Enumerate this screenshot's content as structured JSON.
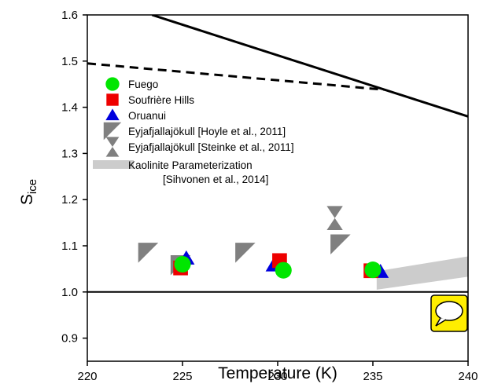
{
  "chart_data": {
    "type": "scatter",
    "xlabel": "Temperature (K)",
    "ylabel": "S",
    "ylabel_sub": "ice",
    "xlim": [
      220,
      240
    ],
    "ylim": [
      0.85,
      1.6
    ],
    "xticks": [
      "220",
      "225",
      "230",
      "235",
      "240"
    ],
    "yticks": [
      "0.9",
      "1.0",
      "1.1",
      "1.2",
      "1.3",
      "1.4",
      "1.5",
      "1.6"
    ],
    "legend_position": "left",
    "series": [
      {
        "name": "Fuego",
        "marker": "circle",
        "color": "#00e600",
        "points": [
          {
            "x": 225.0,
            "y": 1.06
          },
          {
            "x": 230.3,
            "y": 1.047
          },
          {
            "x": 235.0,
            "y": 1.048
          }
        ]
      },
      {
        "name": "Soufrière Hills",
        "marker": "square",
        "color": "#ee0000",
        "points": [
          {
            "x": 224.9,
            "y": 1.052
          },
          {
            "x": 230.1,
            "y": 1.068
          },
          {
            "x": 234.9,
            "y": 1.046
          }
        ]
      },
      {
        "name": "Oruanui",
        "marker": "triangle",
        "color": "#0000dd",
        "points": [
          {
            "x": 225.2,
            "y": 1.072
          },
          {
            "x": 229.8,
            "y": 1.057
          },
          {
            "x": 235.4,
            "y": 1.043
          }
        ]
      },
      {
        "name": "Eyjafjallajökull [Hoyle et al., 2011]",
        "marker": "wedge",
        "color": "#808080",
        "points": [
          {
            "x": 223.2,
            "y": 1.085
          },
          {
            "x": 224.9,
            "y": 1.058
          },
          {
            "x": 228.3,
            "y": 1.085
          },
          {
            "x": 233.3,
            "y": 1.103
          }
        ]
      },
      {
        "name": "Eyjafjallajökull [Steinke et al., 2011]",
        "marker": "hourglass",
        "color": "#808080",
        "points": [
          {
            "x": 233.0,
            "y": 1.16
          }
        ]
      },
      {
        "name": "Kaolinite Parameterization",
        "name_line2": "[Sihvonen et al., 2014]",
        "marker": "band",
        "color": "#cccccc",
        "band": {
          "x": [
            235.2,
            240
          ],
          "lower": [
            1.005,
            1.033
          ],
          "upper": [
            1.045,
            1.077
          ]
        }
      }
    ],
    "lines": [
      {
        "style": "solid",
        "color": "#000000",
        "points": [
          {
            "x": 223.4,
            "y": 1.6
          },
          {
            "x": 240,
            "y": 1.38
          }
        ]
      },
      {
        "style": "dashed",
        "color": "#000000",
        "points": [
          {
            "x": 220,
            "y": 1.495
          },
          {
            "x": 235.6,
            "y": 1.438
          }
        ]
      },
      {
        "style": "solid",
        "color": "#000000",
        "points": [
          {
            "x": 220,
            "y": 1.0
          },
          {
            "x": 240,
            "y": 1.0
          }
        ]
      }
    ]
  },
  "corner_icon": {
    "name": "speech-bubble-icon",
    "color": "#ffee00"
  }
}
